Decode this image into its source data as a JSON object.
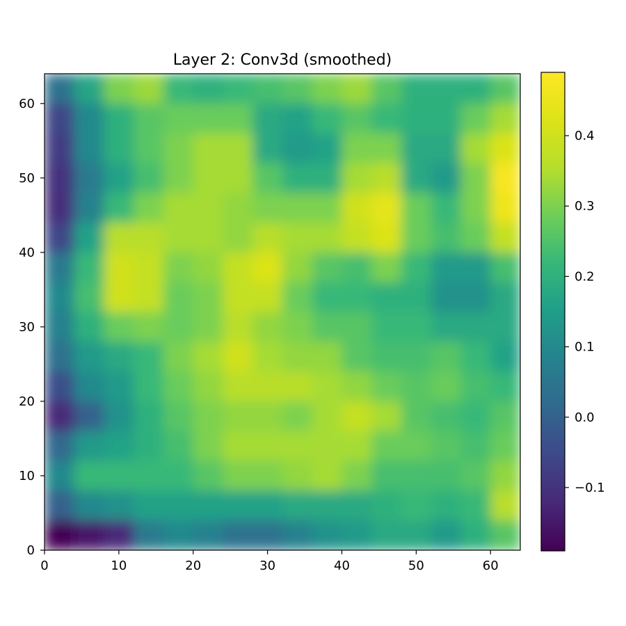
{
  "chart_data": {
    "type": "heatmap",
    "title": "Layer 2: Conv3d (smoothed)",
    "xlabel": "",
    "ylabel": "",
    "xlim": [
      0,
      64
    ],
    "ylim": [
      0,
      64
    ],
    "xticks": [
      "0",
      "10",
      "20",
      "30",
      "40",
      "50",
      "60"
    ],
    "yticks": [
      "0",
      "10",
      "20",
      "30",
      "40",
      "50",
      "60"
    ],
    "colormap": "viridis",
    "colorbar": {
      "range": [
        -0.19,
        0.49
      ],
      "ticks": [
        "−0.1",
        "0.0",
        "0.1",
        "0.2",
        "0.3",
        "0.4"
      ],
      "tick_values": [
        -0.1,
        0.0,
        0.1,
        0.2,
        0.3,
        0.4
      ]
    },
    "grid": false,
    "cell_size": 4,
    "values_rows_top_to_bottom": [
      [
        0.04,
        0.17,
        0.3,
        0.33,
        0.22,
        0.2,
        0.22,
        0.24,
        0.26,
        0.3,
        0.33,
        0.26,
        0.2,
        0.2,
        0.2,
        0.26
      ],
      [
        -0.06,
        0.1,
        0.2,
        0.26,
        0.28,
        0.28,
        0.28,
        0.18,
        0.16,
        0.22,
        0.26,
        0.22,
        0.2,
        0.2,
        0.28,
        0.34
      ],
      [
        -0.08,
        0.1,
        0.2,
        0.26,
        0.3,
        0.34,
        0.34,
        0.18,
        0.14,
        0.16,
        0.3,
        0.3,
        0.18,
        0.18,
        0.34,
        0.42
      ],
      [
        -0.1,
        0.06,
        0.16,
        0.24,
        0.3,
        0.34,
        0.34,
        0.26,
        0.2,
        0.2,
        0.34,
        0.36,
        0.18,
        0.14,
        0.3,
        0.48
      ],
      [
        -0.11,
        0.08,
        0.22,
        0.3,
        0.34,
        0.34,
        0.32,
        0.3,
        0.3,
        0.3,
        0.4,
        0.44,
        0.28,
        0.22,
        0.3,
        0.46
      ],
      [
        -0.06,
        0.16,
        0.36,
        0.36,
        0.34,
        0.34,
        0.32,
        0.36,
        0.34,
        0.34,
        0.38,
        0.42,
        0.28,
        0.24,
        0.28,
        0.38
      ],
      [
        0.06,
        0.22,
        0.4,
        0.38,
        0.3,
        0.32,
        0.38,
        0.42,
        0.32,
        0.26,
        0.24,
        0.3,
        0.22,
        0.14,
        0.14,
        0.24
      ],
      [
        0.1,
        0.24,
        0.4,
        0.38,
        0.28,
        0.3,
        0.38,
        0.38,
        0.28,
        0.22,
        0.22,
        0.2,
        0.2,
        0.12,
        0.12,
        0.18
      ],
      [
        0.08,
        0.2,
        0.28,
        0.3,
        0.28,
        0.3,
        0.36,
        0.32,
        0.3,
        0.26,
        0.26,
        0.22,
        0.22,
        0.18,
        0.18,
        0.18
      ],
      [
        0.04,
        0.14,
        0.18,
        0.22,
        0.3,
        0.34,
        0.4,
        0.34,
        0.32,
        0.32,
        0.26,
        0.24,
        0.24,
        0.26,
        0.22,
        0.16
      ],
      [
        -0.04,
        0.1,
        0.14,
        0.22,
        0.28,
        0.32,
        0.36,
        0.36,
        0.36,
        0.34,
        0.32,
        0.28,
        0.26,
        0.28,
        0.24,
        0.22
      ],
      [
        -0.12,
        0.0,
        0.12,
        0.2,
        0.26,
        0.3,
        0.32,
        0.32,
        0.3,
        0.34,
        0.38,
        0.34,
        0.26,
        0.24,
        0.22,
        0.26
      ],
      [
        0.02,
        0.14,
        0.16,
        0.2,
        0.24,
        0.3,
        0.34,
        0.34,
        0.34,
        0.34,
        0.34,
        0.28,
        0.28,
        0.26,
        0.24,
        0.28
      ],
      [
        0.1,
        0.22,
        0.22,
        0.22,
        0.22,
        0.26,
        0.3,
        0.3,
        0.32,
        0.34,
        0.3,
        0.24,
        0.24,
        0.24,
        0.26,
        0.32
      ],
      [
        0.0,
        0.1,
        0.12,
        0.16,
        0.16,
        0.16,
        0.16,
        0.16,
        0.18,
        0.18,
        0.18,
        0.2,
        0.22,
        0.2,
        0.22,
        0.36
      ],
      [
        -0.19,
        -0.15,
        -0.12,
        0.06,
        0.1,
        0.08,
        0.04,
        0.04,
        0.08,
        0.12,
        0.14,
        0.18,
        0.18,
        0.14,
        0.2,
        0.26
      ]
    ]
  }
}
